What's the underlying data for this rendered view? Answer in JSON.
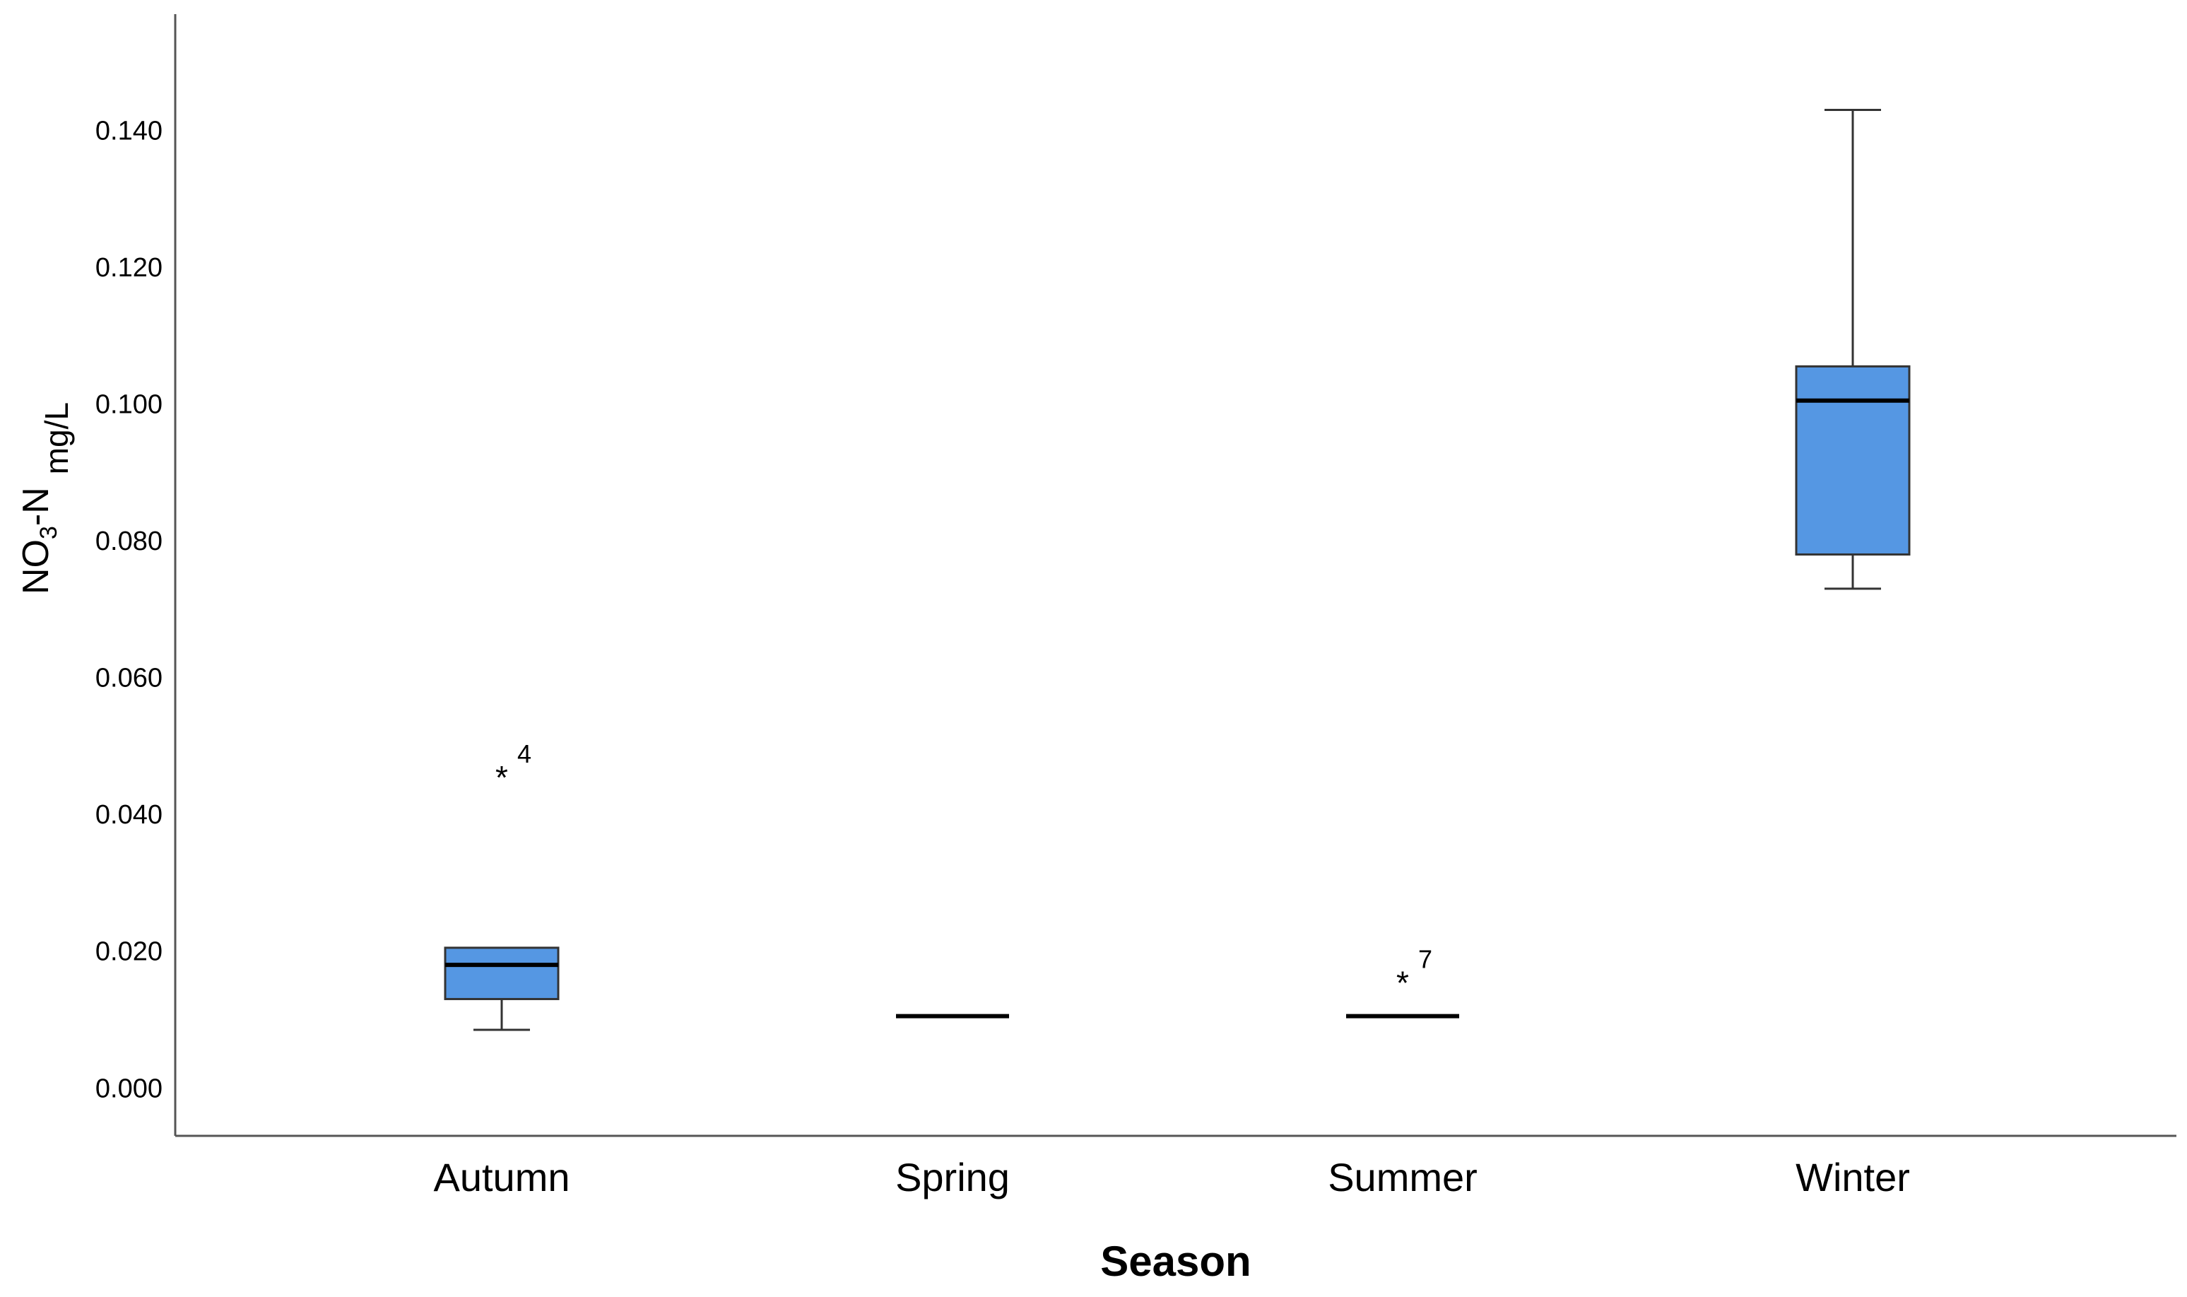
{
  "chart_data": {
    "type": "box",
    "title": "",
    "xlabel": "Season",
    "ylabel": {
      "main": "NO",
      "sub": "3",
      "rest": "-N",
      "unit": "mg/L"
    },
    "ylim": [
      -0.007,
      0.157
    ],
    "yticks": [
      {
        "value": 0.0,
        "label": "0.000"
      },
      {
        "value": 0.02,
        "label": "0.020"
      },
      {
        "value": 0.04,
        "label": "0.040"
      },
      {
        "value": 0.06,
        "label": "0.060"
      },
      {
        "value": 0.08,
        "label": "0.080"
      },
      {
        "value": 0.1,
        "label": "0.100"
      },
      {
        "value": 0.12,
        "label": "0.120"
      },
      {
        "value": 0.14,
        "label": "0.140"
      }
    ],
    "grid": false,
    "box_color": "#5597e3",
    "categories": [
      "Autumn",
      "Spring",
      "Summer",
      "Winter"
    ],
    "boxes": [
      {
        "category": "Autumn",
        "min": 0.0085,
        "q1": 0.013,
        "median": 0.018,
        "q3": 0.0205,
        "max": 0.0205,
        "outliers": [
          {
            "value": 0.0455,
            "label": "4",
            "marker": "*"
          }
        ]
      },
      {
        "category": "Spring",
        "min": 0.0105,
        "q1": 0.0105,
        "median": 0.0105,
        "q3": 0.0105,
        "max": 0.0105,
        "outliers": []
      },
      {
        "category": "Summer",
        "min": 0.0105,
        "q1": 0.0105,
        "median": 0.0105,
        "q3": 0.0105,
        "max": 0.0105,
        "outliers": [
          {
            "value": 0.0155,
            "label": "7",
            "marker": "*"
          }
        ]
      },
      {
        "category": "Winter",
        "min": 0.073,
        "q1": 0.078,
        "median": 0.1005,
        "q3": 0.1055,
        "max": 0.143,
        "outliers": []
      }
    ]
  }
}
